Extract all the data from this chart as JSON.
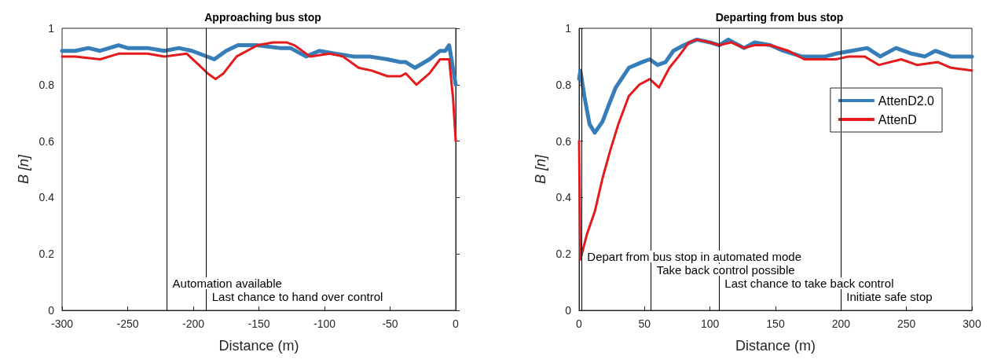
{
  "chart_data": [
    {
      "type": "line",
      "title": "Approaching bus stop",
      "xlabel": "Distance (m)",
      "ylabel": "B [n]",
      "xlim": [
        -300,
        0
      ],
      "xticks": [
        -300,
        -250,
        -200,
        -150,
        -100,
        -50,
        0
      ],
      "ylim": [
        0,
        1
      ],
      "yticks": [
        0,
        0.2,
        0.4,
        0.6,
        0.8,
        1
      ],
      "grid": false,
      "legend": false,
      "series": [
        {
          "color": "#377eb8",
          "x": [
            -300,
            -290,
            -280,
            -271,
            -257,
            -250,
            -235,
            -222,
            -211,
            -201,
            -184,
            -175,
            -166,
            -152,
            -134,
            -126,
            -114,
            -104,
            -92,
            -78,
            -66,
            -52,
            -42,
            -38,
            -31,
            -20,
            -12,
            -8,
            -5,
            0
          ],
          "values": [
            0.92,
            0.92,
            0.93,
            0.92,
            0.94,
            0.93,
            0.93,
            0.92,
            0.93,
            0.92,
            0.89,
            0.92,
            0.94,
            0.94,
            0.93,
            0.93,
            0.9,
            0.92,
            0.91,
            0.9,
            0.9,
            0.89,
            0.88,
            0.88,
            0.86,
            0.89,
            0.92,
            0.92,
            0.94,
            0.8
          ]
        },
        {
          "color": "#e41a1c",
          "x": [
            -300,
            -290,
            -271,
            -257,
            -235,
            -222,
            -205,
            -198,
            -189,
            -183,
            -177,
            -167,
            -151,
            -139,
            -129,
            -123,
            -111,
            -96,
            -86,
            -74,
            -64,
            -52,
            -42,
            -38,
            -30,
            -20,
            -12,
            -7,
            -5,
            -2,
            0
          ],
          "values": [
            0.9,
            0.9,
            0.89,
            0.91,
            0.91,
            0.9,
            0.91,
            0.88,
            0.84,
            0.82,
            0.84,
            0.9,
            0.94,
            0.95,
            0.95,
            0.94,
            0.9,
            0.91,
            0.9,
            0.86,
            0.85,
            0.83,
            0.83,
            0.84,
            0.8,
            0.84,
            0.89,
            0.89,
            0.89,
            0.75,
            0.6
          ]
        }
      ],
      "ref_lines": [
        {
          "axis": "x",
          "value": -220,
          "label": "Automation available"
        },
        {
          "axis": "x",
          "value": -190,
          "label": "Last chance to hand over control"
        }
      ]
    },
    {
      "type": "line",
      "title": "Departing from bus stop",
      "xlabel": "Distance (m)",
      "ylabel": "B [n]",
      "xlim": [
        0,
        300
      ],
      "xticks": [
        0,
        50,
        100,
        150,
        200,
        250,
        300
      ],
      "ylim": [
        0,
        1
      ],
      "yticks": [
        0,
        0.2,
        0.4,
        0.6,
        0.8,
        1
      ],
      "grid": false,
      "legend": "right",
      "series": [
        {
          "name": "AttenD2.0",
          "color": "#377eb8",
          "x": [
            0,
            1,
            4,
            8,
            12,
            18,
            22,
            28,
            38,
            48,
            54,
            60,
            66,
            72,
            80,
            90,
            100,
            107,
            114,
            126,
            134,
            146,
            156,
            170,
            182,
            188,
            196,
            208,
            220,
            230,
            242,
            254,
            264,
            272,
            284,
            300
          ],
          "values": [
            0.82,
            0.85,
            0.76,
            0.66,
            0.63,
            0.67,
            0.72,
            0.79,
            0.86,
            0.88,
            0.89,
            0.87,
            0.88,
            0.92,
            0.94,
            0.96,
            0.95,
            0.94,
            0.96,
            0.93,
            0.95,
            0.94,
            0.92,
            0.9,
            0.9,
            0.9,
            0.91,
            0.92,
            0.93,
            0.9,
            0.93,
            0.91,
            0.9,
            0.92,
            0.9,
            0.9
          ]
        },
        {
          "name": "AttenD",
          "color": "#e41a1c",
          "x": [
            0,
            1,
            6,
            12,
            18,
            24,
            30,
            38,
            46,
            54,
            61,
            69,
            76,
            84,
            90,
            100,
            107,
            116,
            126,
            134,
            146,
            160,
            172,
            184,
            196,
            206,
            218,
            229,
            246,
            258,
            274,
            284,
            300
          ],
          "values": [
            0.6,
            0.18,
            0.27,
            0.35,
            0.47,
            0.57,
            0.66,
            0.76,
            0.8,
            0.82,
            0.79,
            0.86,
            0.9,
            0.95,
            0.96,
            0.95,
            0.94,
            0.95,
            0.93,
            0.94,
            0.94,
            0.92,
            0.89,
            0.89,
            0.89,
            0.9,
            0.9,
            0.87,
            0.89,
            0.87,
            0.88,
            0.86,
            0.85
          ]
        }
      ],
      "ref_lines": [
        {
          "axis": "x",
          "value": 2,
          "label": "Depart from bus stop in automated mode"
        },
        {
          "axis": "x",
          "value": 55,
          "label": "Take back control possible"
        },
        {
          "axis": "x",
          "value": 107,
          "label": "Last chance to take back control"
        },
        {
          "axis": "x",
          "value": 200,
          "label": "Initiate safe stop"
        }
      ]
    }
  ]
}
